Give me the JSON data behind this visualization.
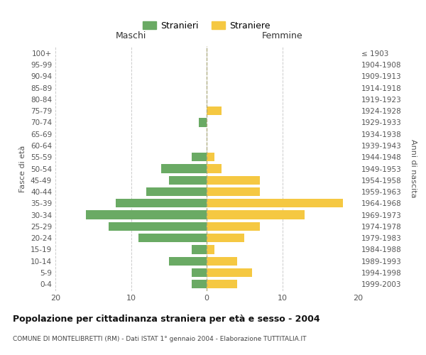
{
  "age_groups": [
    "0-4",
    "5-9",
    "10-14",
    "15-19",
    "20-24",
    "25-29",
    "30-34",
    "35-39",
    "40-44",
    "45-49",
    "50-54",
    "55-59",
    "60-64",
    "65-69",
    "70-74",
    "75-79",
    "80-84",
    "85-89",
    "90-94",
    "95-99",
    "100+"
  ],
  "birth_years": [
    "1999-2003",
    "1994-1998",
    "1989-1993",
    "1984-1988",
    "1979-1983",
    "1974-1978",
    "1969-1973",
    "1964-1968",
    "1959-1963",
    "1954-1958",
    "1949-1953",
    "1944-1948",
    "1939-1943",
    "1934-1938",
    "1929-1933",
    "1924-1928",
    "1919-1923",
    "1914-1918",
    "1909-1913",
    "1904-1908",
    "≤ 1903"
  ],
  "males": [
    2,
    2,
    5,
    2,
    9,
    13,
    16,
    12,
    8,
    5,
    6,
    2,
    0,
    0,
    1,
    0,
    0,
    0,
    0,
    0,
    0
  ],
  "females": [
    4,
    6,
    4,
    1,
    5,
    7,
    13,
    18,
    7,
    7,
    2,
    1,
    0,
    0,
    0,
    2,
    0,
    0,
    0,
    0,
    0
  ],
  "male_color": "#6aaa64",
  "female_color": "#f5c842",
  "title": "Popolazione per cittadinanza straniera per età e sesso - 2004",
  "subtitle": "COMUNE DI MONTELIBRETTI (RM) - Dati ISTAT 1° gennaio 2004 - Elaborazione TUTTITALIA.IT",
  "xlabel_left": "Maschi",
  "xlabel_right": "Femmine",
  "ylabel_left": "Fasce di età",
  "ylabel_right": "Anni di nascita",
  "legend_stranieri": "Stranieri",
  "legend_straniere": "Straniere",
  "xlim": 20,
  "background_color": "#ffffff",
  "grid_color": "#cccccc"
}
